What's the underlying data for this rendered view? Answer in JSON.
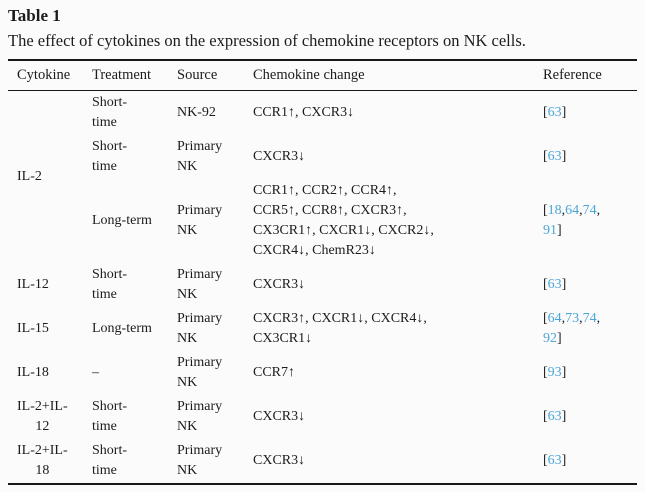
{
  "page": {
    "title": "Table 1",
    "caption": "The effect of cytokines on the expression of chemokine receptors on NK cells."
  },
  "colors": {
    "reference_link": "#4aa5d8",
    "rule": "#181818",
    "text": "#1c1c1c",
    "background": "#fbfbfb"
  },
  "table": {
    "headers": [
      "Cytokine",
      "Treatment",
      "Source",
      "Chemokine change",
      "Reference"
    ],
    "rows": [
      {
        "cytokine": {
          "lines": [
            "IL-2"
          ],
          "rowspan": 3
        },
        "treatment": [
          "Short-",
          "time"
        ],
        "source": [
          "NK-92"
        ],
        "chemokine": [
          "CCR1↑, CXCR3↓"
        ],
        "reference": [
          [
            "63"
          ]
        ]
      },
      {
        "treatment": [
          "Short-",
          "time"
        ],
        "source": [
          "Primary",
          "NK"
        ],
        "chemokine": [
          "CXCR3↓"
        ],
        "reference": [
          [
            "63"
          ]
        ]
      },
      {
        "treatment": [
          "Long-term"
        ],
        "source": [
          "Primary",
          "NK"
        ],
        "chemokine": [
          "CCR1↑, CCR2↑, CCR4↑,",
          "CCR5↑, CCR8↑, CXCR3↑,",
          "CX3CR1↑, CXCR1↓, CXCR2↓,",
          "CXCR4↓, ChemR23↓"
        ],
        "reference": [
          [
            "18",
            "64",
            "74"
          ],
          [
            "91"
          ]
        ]
      },
      {
        "cytokine": {
          "lines": [
            "IL-12"
          ],
          "rowspan": 1
        },
        "treatment": [
          "Short-",
          "time"
        ],
        "source": [
          "Primary",
          "NK"
        ],
        "chemokine": [
          "CXCR3↓"
        ],
        "reference": [
          [
            "63"
          ]
        ]
      },
      {
        "cytokine": {
          "lines": [
            "IL-15"
          ],
          "rowspan": 1
        },
        "treatment": [
          "Long-term"
        ],
        "source": [
          "Primary",
          "NK"
        ],
        "chemokine": [
          "CXCR3↑, CXCR1↓, CXCR4↓,",
          "CX3CR1↓"
        ],
        "reference": [
          [
            "64",
            "73",
            "74"
          ],
          [
            "92"
          ]
        ]
      },
      {
        "cytokine": {
          "lines": [
            "IL-18"
          ],
          "rowspan": 1
        },
        "treatment": [
          "–"
        ],
        "source": [
          "Primary",
          "NK"
        ],
        "chemokine": [
          "CCR7↑"
        ],
        "reference": [
          [
            "93"
          ]
        ]
      },
      {
        "cytokine": {
          "lines": [
            "IL-2+IL-",
            "12"
          ],
          "rowspan": 1
        },
        "treatment": [
          "Short-",
          "time"
        ],
        "source": [
          "Primary",
          "NK"
        ],
        "chemokine": [
          "CXCR3↓"
        ],
        "reference": [
          [
            "63"
          ]
        ]
      },
      {
        "cytokine": {
          "lines": [
            "IL-2+IL-",
            "18"
          ],
          "rowspan": 1
        },
        "treatment": [
          "Short-",
          "time"
        ],
        "source": [
          "Primary",
          "NK"
        ],
        "chemokine": [
          "CXCR3↓"
        ],
        "reference": [
          [
            "63"
          ]
        ]
      }
    ]
  }
}
